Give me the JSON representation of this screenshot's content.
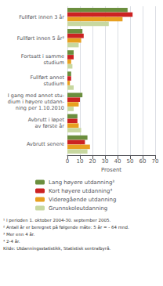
{
  "chart_data": {
    "type": "bar",
    "orientation": "horizontal",
    "categories": [
      "Fullført innen 3 år",
      "Fullført innen 5 år²",
      "Fortsatt i samme\nstudium",
      "Fullført annet\nstudium",
      "I gang med annet stu-\ndium i høyere utdann-\nning per 1.10.2010",
      "Avbrutt i løpet\nav første år",
      "Avbrutt senere"
    ],
    "series": [
      {
        "name": "Lang høyere utdanning³",
        "color": "#6b8e3e",
        "values": [
          48,
          12,
          5,
          3,
          12,
          8,
          16
        ]
      },
      {
        "name": "Kort høyere utdanning⁴",
        "color": "#cc2222",
        "values": [
          52,
          13,
          5,
          3,
          10,
          8,
          14
        ]
      },
      {
        "name": "Videregående utdanning",
        "color": "#e8a020",
        "values": [
          44,
          11,
          3,
          2,
          9,
          9,
          18
        ]
      },
      {
        "name": "Grunnskoleutdanning",
        "color": "#c8d8a0",
        "values": [
          33,
          9,
          4,
          5,
          5,
          11,
          16
        ]
      }
    ],
    "xlabel": "Prosent",
    "xlim": [
      0,
      70
    ],
    "xticks": [
      0,
      10,
      20,
      30,
      40,
      50,
      60,
      70
    ],
    "grid": true,
    "legend": "bottom",
    "annotations": [
      "¹ I perioden 1. oktober 2004-30. september 2005.",
      "² Antall år er beregnet på følgende måte: 5 år = - 64 mnd.",
      "³ Mer enn 4 år.",
      "⁴ 2-4 år.",
      "Kilde: Utdanningsstatistikk, Statistisk sentralbyrå."
    ]
  }
}
